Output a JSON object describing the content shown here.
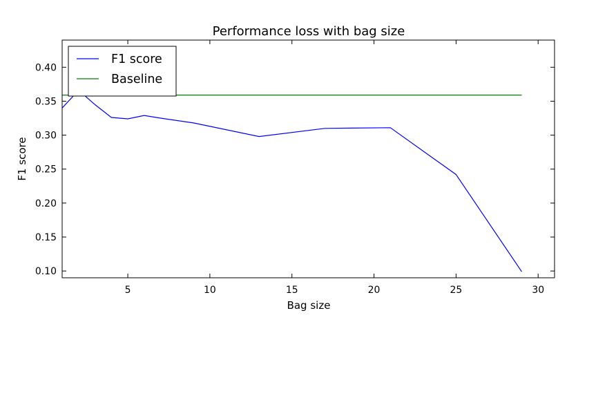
{
  "chart_data": {
    "type": "line",
    "title": "Performance loss with bag size",
    "xlabel": "Bag size",
    "ylabel": "F1 score",
    "xlim": [
      1,
      31
    ],
    "ylim": [
      0.09,
      0.44
    ],
    "xticks": [
      5,
      10,
      15,
      20,
      25,
      30
    ],
    "yticks": [
      0.1,
      0.15,
      0.2,
      0.25,
      0.3,
      0.35,
      0.4
    ],
    "grid": false,
    "legend_position": "top-left",
    "series": [
      {
        "name": "F1 score",
        "color": "#0000ff",
        "x": [
          1,
          2,
          3,
          4,
          5,
          6,
          7,
          9,
          13,
          17,
          21,
          25,
          29
        ],
        "y": [
          0.34,
          0.366,
          0.345,
          0.326,
          0.324,
          0.329,
          0.325,
          0.318,
          0.298,
          0.31,
          0.311,
          0.242,
          0.099
        ]
      },
      {
        "name": "Baseline",
        "color": "#008000",
        "x": [
          1,
          29
        ],
        "y": [
          0.359,
          0.359
        ]
      }
    ]
  }
}
